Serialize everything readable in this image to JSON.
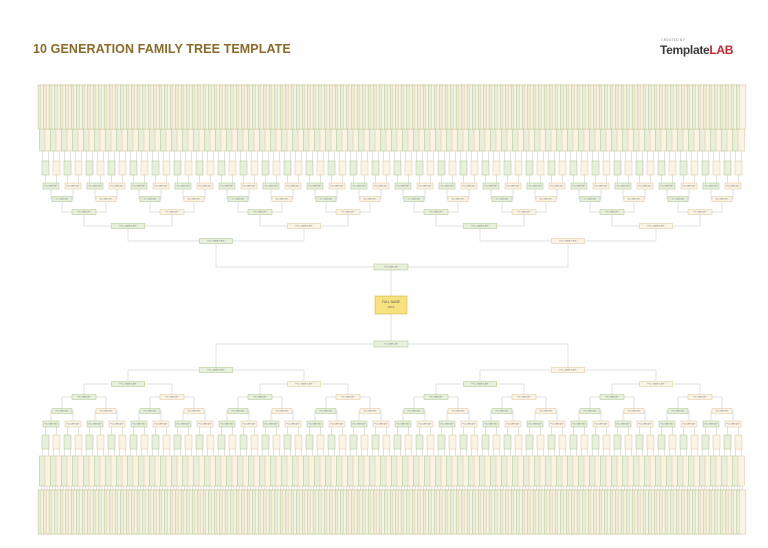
{
  "document": {
    "title": "10 GENERATION FAMILY TREE TEMPLATE"
  },
  "brand": {
    "small_text": "CREATED BY",
    "logo_part1": "Template",
    "logo_part2": "LAB"
  },
  "root": {
    "name": "FULL NAME",
    "subtitle": "DATE"
  },
  "box_placeholder": "FULL NAME DATE",
  "colors": {
    "title": "#8a6a2a",
    "green_fill": "#e8f0dc",
    "green_stroke": "#a7c38a",
    "cream_fill": "#fbf3e4",
    "cream_stroke": "#dec49a",
    "root_fill": "#f8e17f",
    "root_stroke": "#c9a83a",
    "connector": "#c4c4c4",
    "brand_dark": "#3a3a3a",
    "brand_red": "#c8262f"
  }
}
